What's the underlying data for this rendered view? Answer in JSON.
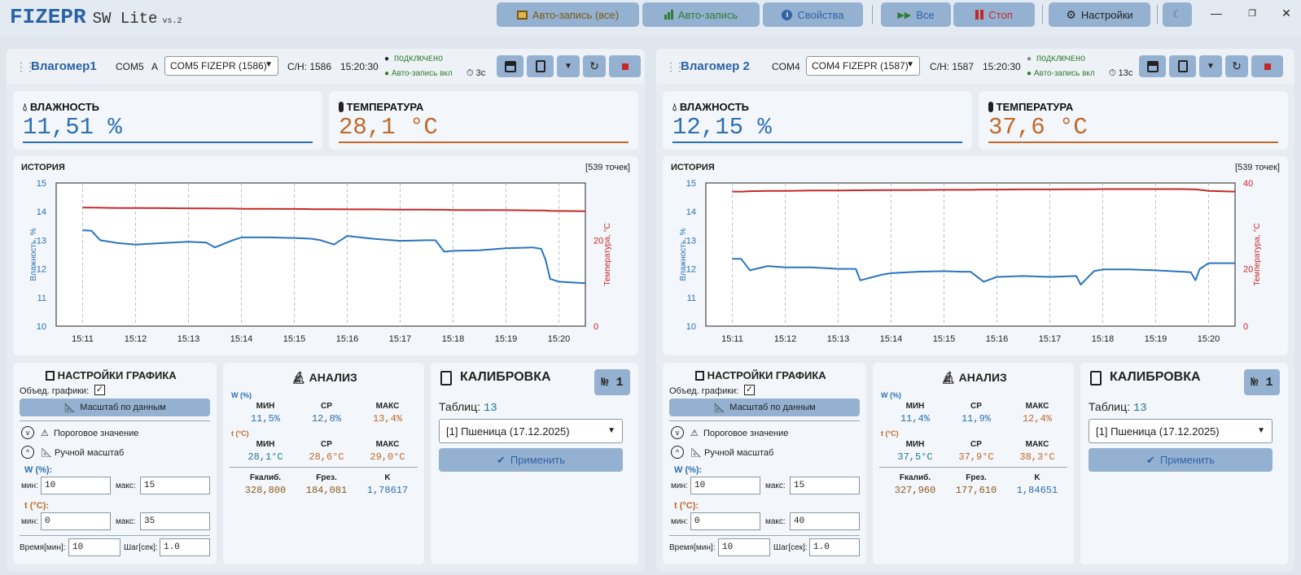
{
  "app": {
    "logo": "FIZEPR",
    "name": "SW Lite",
    "version": "vs.2"
  },
  "toolbar": {
    "autorecord_all": "Авто-запись (все)",
    "autorecord": "Авто-запись",
    "properties": "Свойства",
    "all": "Все",
    "stop": "Стоп",
    "settings": "Настройки"
  },
  "colors": {
    "humidity": "#2a6fb5",
    "temperature": "#c0682a",
    "temp_line": "#c62828",
    "hum_line": "#2a74bf",
    "button": "#95b1d1",
    "connected": "#2e7d32"
  },
  "devices": [
    {
      "name": "Влагомер1",
      "port": "COM5",
      "extra": "A",
      "combo": "COM5 FIZEPR (1586)",
      "sn": "С/Н: 1586",
      "time": "15:20:30",
      "status": "ПОДКЛЮЧЕНО",
      "autorec": "Авто-запись вкл",
      "interval": "3с",
      "humidity_title": "ВЛАЖНОСТЬ",
      "humidity": "11,51  %",
      "temperature_title": "ТЕМПЕРАТУРА",
      "temperature": "28,1  °C",
      "history_title": "ИСТОРИЯ",
      "points": "[539 точек]",
      "chart": {
        "left_label": "Влажность, %",
        "right_label": "Температура, °C",
        "left_ticks": [
          "15",
          "14",
          "13",
          "12",
          "11",
          "10"
        ],
        "right_ticks": [
          "",
          "",
          "20",
          "",
          "",
          "0"
        ],
        "x_ticks": [
          "15:11",
          "15:12",
          "15:13",
          "15:14",
          "15:15",
          "15:16",
          "15:17",
          "15:18",
          "15:19",
          "15:20"
        ]
      },
      "graph_settings": {
        "title": "НАСТРОЙКИ ГРАФИКА",
        "combine": "Объед. графики:",
        "combine_checked": "✓",
        "fit": "Масштаб по данным",
        "threshold": "Пороговое значение",
        "manual": "Ручной масштаб",
        "w_label": "W (%):",
        "t_label": "t (°C):",
        "min": "мин:",
        "max": "макс:",
        "w_min": "10",
        "w_max": "15",
        "t_min": "0",
        "t_max": "35",
        "time_label": "Время[мин]:",
        "time_val": "10",
        "step_label": "Шаг[сек]:",
        "step_val": "1.0"
      },
      "analysis": {
        "title": "АНАЛИЗ",
        "w_head": "W (%)",
        "t_head": "t (°C)",
        "min": "МИН",
        "avg": "СР",
        "max": "МАКС",
        "w_min": "11,5%",
        "w_avg": "12,8%",
        "w_max": "13,4%",
        "t_min": "28,1°C",
        "t_avg": "28,6°C",
        "t_max": "29,0°C",
        "f_cal": "Fкалиб.",
        "f_res": "Fрез.",
        "k": "K",
        "f_cal_val": "328,800",
        "f_res_val": "184,081",
        "k_val": "1,78617"
      },
      "calibration": {
        "title": "КАЛИБРОВКА",
        "num": "№ 1",
        "tables_label": "Таблиц:",
        "tables": "13",
        "selected": "[1]  Пшеница (17.12.2025)",
        "apply": "Применить"
      }
    },
    {
      "name": "Влагомер 2",
      "port": "COM4",
      "extra": "",
      "combo": "COM4 FIZEPR (1587)",
      "sn": "С/Н: 1587",
      "time": "15:20:30",
      "status": "ПОДКЛЮЧЕНО",
      "autorec": "Авто-запись вкл",
      "interval": "13с",
      "humidity_title": "ВЛАЖНОСТЬ",
      "humidity": "12,15  %",
      "temperature_title": "ТЕМПЕРАТУРА",
      "temperature": "37,6  °C",
      "history_title": "ИСТОРИЯ",
      "points": "[539 точек]",
      "chart": {
        "left_label": "Влажность, %",
        "right_label": "Температура, °C",
        "left_ticks": [
          "15",
          "14",
          "13",
          "12",
          "11",
          "10"
        ],
        "right_ticks": [
          "40",
          "",
          "",
          "20",
          "",
          "0"
        ],
        "x_ticks": [
          "15:11",
          "15:12",
          "15:13",
          "15:14",
          "15:15",
          "15:16",
          "15:17",
          "15:18",
          "15:19",
          "15:20"
        ]
      },
      "graph_settings": {
        "title": "НАСТРОЙКИ ГРАФИКА",
        "combine": "Объед. графики:",
        "combine_checked": "✓",
        "fit": "Масштаб по данным",
        "threshold": "Пороговое значение",
        "manual": "Ручной масштаб",
        "w_label": "W (%):",
        "t_label": "t (°C):",
        "min": "мин:",
        "max": "макс:",
        "w_min": "10",
        "w_max": "15",
        "t_min": "0",
        "t_max": "40",
        "time_label": "Время[мин]:",
        "time_val": "10",
        "step_label": "Шаг[сек]:",
        "step_val": "1.0"
      },
      "analysis": {
        "title": "АНАЛИЗ",
        "w_head": "W (%)",
        "t_head": "t (°C)",
        "min": "МИН",
        "avg": "СР",
        "max": "МАКС",
        "w_min": "11,4%",
        "w_avg": "11,9%",
        "w_max": "12,4%",
        "t_min": "37,5°C",
        "t_avg": "37,9°C",
        "t_max": "38,3°C",
        "f_cal": "Fкалиб.",
        "f_res": "Fрез.",
        "k": "K",
        "f_cal_val": "327,960",
        "f_res_val": "177,610",
        "k_val": "1,84651"
      },
      "calibration": {
        "title": "КАЛИБРОВКА",
        "num": "№ 1",
        "tables_label": "Таблиц:",
        "tables": "13",
        "selected": "[1]  Пшеница (17.12.2025)",
        "apply": "Применить"
      }
    }
  ],
  "chart_data": [
    {
      "type": "line",
      "ylim_left": [
        10,
        15
      ],
      "ylim_right": [
        0,
        35
      ],
      "x": [
        "15:11",
        "15:11:10",
        "15:11:20",
        "15:11:40",
        "15:12",
        "15:12:30",
        "15:13",
        "15:13:20",
        "15:13:30",
        "15:13:50",
        "15:14",
        "15:14:30",
        "15:15",
        "15:15:20",
        "15:15:30",
        "15:15:45",
        "15:16",
        "15:16:30",
        "15:17",
        "15:17:30",
        "15:17:40",
        "15:17:50",
        "15:18",
        "15:18:30",
        "15:19",
        "15:19:30",
        "15:19:40",
        "15:19:45",
        "15:19:50",
        "15:20",
        "15:20:30"
      ],
      "series": [
        {
          "axis": "left",
          "values": [
            13.35,
            13.33,
            13.0,
            12.9,
            12.85,
            12.9,
            12.95,
            12.92,
            12.75,
            13.0,
            13.1,
            13.1,
            13.08,
            13.05,
            13.0,
            12.85,
            13.15,
            13.05,
            12.98,
            13.0,
            13.0,
            12.6,
            12.63,
            12.65,
            12.72,
            12.75,
            12.7,
            12.3,
            11.65,
            11.55,
            11.5
          ]
        },
        {
          "axis": "right",
          "values": [
            29.0,
            29.0,
            28.95,
            28.9,
            28.9,
            28.85,
            28.8,
            28.8,
            28.75,
            28.75,
            28.7,
            28.7,
            28.65,
            28.6,
            28.6,
            28.6,
            28.55,
            28.55,
            28.5,
            28.5,
            28.45,
            28.45,
            28.4,
            28.4,
            28.35,
            28.3,
            28.3,
            28.25,
            28.2,
            28.15,
            28.1
          ]
        }
      ]
    },
    {
      "type": "line",
      "ylim_left": [
        10,
        15
      ],
      "ylim_right": [
        0,
        40
      ],
      "x": [
        "15:11",
        "15:11:10",
        "15:11:20",
        "15:11:40",
        "15:12",
        "15:12:30",
        "15:13",
        "15:13:20",
        "15:13:25",
        "15:13:50",
        "15:14",
        "15:14:30",
        "15:15",
        "15:15:20",
        "15:15:30",
        "15:15:45",
        "15:16",
        "15:16:30",
        "15:17",
        "15:17:30",
        "15:17:35",
        "15:17:50",
        "15:18",
        "15:18:30",
        "15:19",
        "15:19:30",
        "15:19:40",
        "15:19:45",
        "15:19:50",
        "15:20",
        "15:20:30"
      ],
      "series": [
        {
          "axis": "left",
          "values": [
            12.35,
            12.35,
            11.95,
            12.1,
            12.05,
            12.05,
            12.0,
            12.0,
            11.6,
            11.8,
            11.85,
            11.9,
            11.92,
            11.9,
            11.9,
            11.55,
            11.72,
            11.75,
            11.72,
            11.75,
            11.45,
            11.92,
            11.98,
            11.98,
            11.95,
            11.9,
            11.88,
            11.6,
            12.0,
            12.2,
            12.2
          ]
        },
        {
          "axis": "right",
          "values": [
            37.6,
            37.6,
            37.7,
            37.8,
            37.8,
            37.9,
            37.9,
            37.95,
            37.95,
            38.0,
            38.0,
            38.05,
            38.1,
            38.1,
            38.1,
            38.15,
            38.15,
            38.2,
            38.2,
            38.25,
            38.25,
            38.25,
            38.3,
            38.3,
            38.3,
            38.3,
            38.25,
            38.2,
            38.1,
            37.8,
            37.6
          ]
        }
      ]
    }
  ]
}
